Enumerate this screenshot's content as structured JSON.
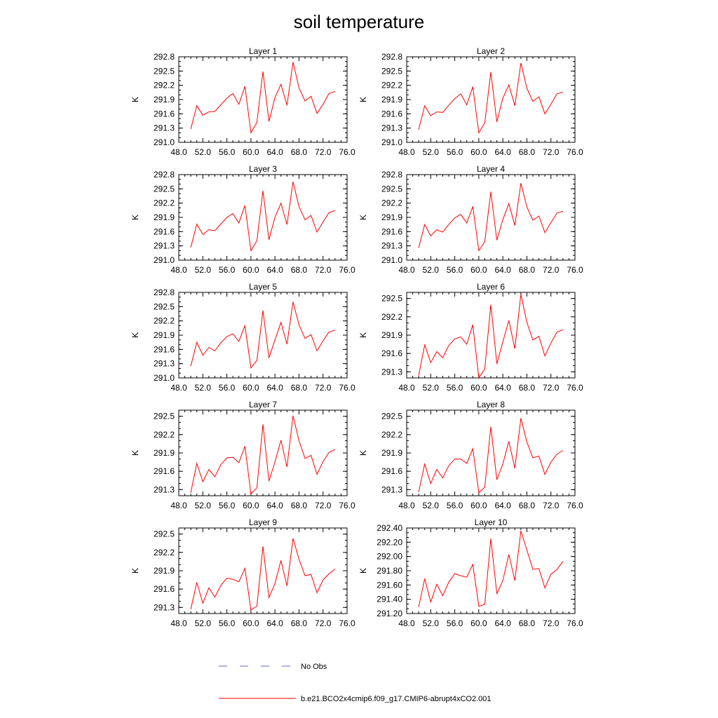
{
  "figure_title": "soil temperature",
  "legend": [
    {
      "label": "No Obs",
      "color": "#6666cc",
      "style": "dashed"
    },
    {
      "label": "b.e21.BCO2x4cmip6.f09_g17.CMIP6-abrupt4xCO2.001",
      "color": "#ff0000",
      "style": "solid"
    }
  ],
  "chart_data": [
    {
      "type": "line",
      "title": "Layer 1",
      "xlabel": "",
      "ylabel": "K",
      "xlim": [
        48,
        76
      ],
      "ylim": [
        291.0,
        292.8
      ],
      "xticks": [
        48,
        52,
        56,
        60,
        64,
        68,
        72,
        76
      ],
      "xtick_labels": [
        "48.0",
        "52.0",
        "56.0",
        "60.0",
        "64.0",
        "68.0",
        "72.0",
        "76.0"
      ],
      "yticks": [
        291.0,
        291.3,
        291.6,
        291.9,
        292.2,
        292.5,
        292.8
      ],
      "ytick_labels": [
        "291.0",
        "291.3",
        "291.6",
        "291.9",
        "292.2",
        "292.5",
        "292.8"
      ],
      "series": [
        {
          "name": "b.e21.BCO2x4cmip6.f09_g17.CMIP6-abrupt4xCO2.001",
          "x": [
            50,
            51,
            52,
            53,
            54,
            55,
            56,
            57,
            58,
            59,
            60,
            61,
            62,
            63,
            64,
            65,
            66,
            67,
            68,
            69,
            70,
            71,
            72,
            73,
            74
          ],
          "y": [
            291.28,
            291.77,
            291.57,
            291.64,
            291.65,
            291.79,
            291.93,
            292.03,
            291.8,
            292.18,
            291.2,
            291.42,
            292.49,
            291.44,
            291.94,
            292.22,
            291.78,
            292.69,
            292.15,
            291.87,
            291.97,
            291.61,
            291.8,
            292.03,
            292.07
          ]
        }
      ]
    },
    {
      "type": "line",
      "title": "Layer 2",
      "xlabel": "",
      "ylabel": "K",
      "xlim": [
        48,
        76
      ],
      "ylim": [
        291.0,
        292.8
      ],
      "xticks": [
        48,
        52,
        56,
        60,
        64,
        68,
        72,
        76
      ],
      "xtick_labels": [
        "48.0",
        "52.0",
        "56.0",
        "60.0",
        "64.0",
        "68.0",
        "72.0",
        "76.0"
      ],
      "yticks": [
        291.0,
        291.3,
        291.6,
        291.9,
        292.2,
        292.5,
        292.8
      ],
      "ytick_labels": [
        "291.0",
        "291.3",
        "291.6",
        "291.9",
        "292.2",
        "292.5",
        "292.8"
      ],
      "series": [
        {
          "name": "b.e21.BCO2x4cmip6.f09_g17.CMIP6-abrupt4xCO2.001",
          "x": [
            50,
            51,
            52,
            53,
            54,
            55,
            56,
            57,
            58,
            59,
            60,
            61,
            62,
            63,
            64,
            65,
            66,
            67,
            68,
            69,
            70,
            71,
            72,
            73,
            74
          ],
          "y": [
            291.27,
            291.77,
            291.56,
            291.64,
            291.63,
            291.78,
            291.92,
            292.02,
            291.79,
            292.17,
            291.2,
            291.41,
            292.48,
            291.43,
            291.93,
            292.21,
            291.77,
            292.67,
            292.14,
            291.86,
            291.96,
            291.6,
            291.8,
            292.02,
            292.06
          ]
        }
      ]
    },
    {
      "type": "line",
      "title": "Layer 3",
      "xlabel": "",
      "ylabel": "K",
      "xlim": [
        48,
        76
      ],
      "ylim": [
        291.0,
        292.8
      ],
      "xticks": [
        48,
        52,
        56,
        60,
        64,
        68,
        72,
        76
      ],
      "xtick_labels": [
        "48.0",
        "52.0",
        "56.0",
        "60.0",
        "64.0",
        "68.0",
        "72.0",
        "76.0"
      ],
      "yticks": [
        291.0,
        291.3,
        291.6,
        291.9,
        292.2,
        292.5,
        292.8
      ],
      "ytick_labels": [
        "291.0",
        "291.3",
        "291.6",
        "291.9",
        "292.2",
        "292.5",
        "292.8"
      ],
      "series": [
        {
          "name": "b.e21.BCO2x4cmip6.f09_g17.CMIP6-abrupt4xCO2.001",
          "x": [
            50,
            51,
            52,
            53,
            54,
            55,
            56,
            57,
            58,
            59,
            60,
            61,
            62,
            63,
            64,
            65,
            66,
            67,
            68,
            69,
            70,
            71,
            72,
            73,
            74
          ],
          "y": [
            291.27,
            291.76,
            291.54,
            291.64,
            291.62,
            291.76,
            291.9,
            291.98,
            291.78,
            292.15,
            291.2,
            291.41,
            292.46,
            291.43,
            291.9,
            292.2,
            291.75,
            292.65,
            292.13,
            291.85,
            291.94,
            291.59,
            291.8,
            292.0,
            292.04
          ]
        }
      ]
    },
    {
      "type": "line",
      "title": "Layer 4",
      "xlabel": "",
      "ylabel": "K",
      "xlim": [
        48,
        76
      ],
      "ylim": [
        291.0,
        292.8
      ],
      "xticks": [
        48,
        52,
        56,
        60,
        64,
        68,
        72,
        76
      ],
      "xtick_labels": [
        "48.0",
        "52.0",
        "56.0",
        "60.0",
        "64.0",
        "68.0",
        "72.0",
        "76.0"
      ],
      "yticks": [
        291.0,
        291.3,
        291.6,
        291.9,
        292.2,
        292.5,
        292.8
      ],
      "ytick_labels": [
        "291.0",
        "291.3",
        "291.6",
        "291.9",
        "292.2",
        "292.5",
        "292.8"
      ],
      "series": [
        {
          "name": "b.e21.BCO2x4cmip6.f09_g17.CMIP6-abrupt4xCO2.001",
          "x": [
            50,
            51,
            52,
            53,
            54,
            55,
            56,
            57,
            58,
            59,
            60,
            61,
            62,
            63,
            64,
            65,
            66,
            67,
            68,
            69,
            70,
            71,
            72,
            73,
            74
          ],
          "y": [
            291.26,
            291.75,
            291.51,
            291.64,
            291.59,
            291.75,
            291.89,
            291.96,
            291.78,
            292.13,
            291.2,
            291.39,
            292.44,
            291.42,
            291.85,
            292.19,
            291.73,
            292.62,
            292.12,
            291.84,
            291.93,
            291.58,
            291.79,
            291.99,
            292.03
          ]
        }
      ]
    },
    {
      "type": "line",
      "title": "Layer 5",
      "xlabel": "",
      "ylabel": "K",
      "xlim": [
        48,
        76
      ],
      "ylim": [
        291.0,
        292.8
      ],
      "xticks": [
        48,
        52,
        56,
        60,
        64,
        68,
        72,
        76
      ],
      "xtick_labels": [
        "48.0",
        "52.0",
        "56.0",
        "60.0",
        "64.0",
        "68.0",
        "72.0",
        "76.0"
      ],
      "yticks": [
        291.0,
        291.3,
        291.6,
        291.9,
        292.2,
        292.5,
        292.8
      ],
      "ytick_labels": [
        "291.0",
        "291.3",
        "291.6",
        "291.9",
        "292.2",
        "292.5",
        "292.8"
      ],
      "series": [
        {
          "name": "b.e21.BCO2x4cmip6.f09_g17.CMIP6-abrupt4xCO2.001",
          "x": [
            50,
            51,
            52,
            53,
            54,
            55,
            56,
            57,
            58,
            59,
            60,
            61,
            62,
            63,
            64,
            65,
            66,
            67,
            68,
            69,
            70,
            71,
            72,
            73,
            74
          ],
          "y": [
            291.25,
            291.75,
            291.48,
            291.64,
            291.57,
            291.74,
            291.87,
            291.93,
            291.77,
            292.1,
            291.21,
            291.37,
            292.42,
            291.42,
            291.8,
            292.17,
            291.71,
            292.6,
            292.12,
            291.83,
            291.91,
            291.57,
            291.78,
            291.97,
            292.0
          ]
        }
      ]
    },
    {
      "type": "line",
      "title": "Layer 6",
      "xlabel": "",
      "ylabel": "K",
      "xlim": [
        48,
        76
      ],
      "ylim": [
        291.2,
        292.6
      ],
      "xticks": [
        48,
        52,
        56,
        60,
        64,
        68,
        72,
        76
      ],
      "xtick_labels": [
        "48.0",
        "52.0",
        "56.0",
        "60.0",
        "64.0",
        "68.0",
        "72.0",
        "76.0"
      ],
      "yticks": [
        291.3,
        291.6,
        291.9,
        292.2,
        292.5
      ],
      "ytick_labels": [
        "291.3",
        "291.6",
        "291.9",
        "292.2",
        "292.5"
      ],
      "series": [
        {
          "name": "b.e21.BCO2x4cmip6.f09_g17.CMIP6-abrupt4xCO2.001",
          "x": [
            50,
            51,
            52,
            53,
            54,
            55,
            56,
            57,
            58,
            59,
            60,
            61,
            62,
            63,
            64,
            65,
            66,
            67,
            68,
            69,
            70,
            71,
            72,
            73,
            74
          ],
          "y": [
            291.24,
            291.74,
            291.45,
            291.63,
            291.53,
            291.73,
            291.84,
            291.87,
            291.75,
            292.07,
            291.2,
            291.35,
            292.4,
            291.43,
            291.79,
            292.14,
            291.68,
            292.57,
            292.11,
            291.82,
            291.88,
            291.56,
            291.77,
            291.95,
            291.99
          ]
        }
      ]
    },
    {
      "type": "line",
      "title": "Layer 7",
      "xlabel": "",
      "ylabel": "K",
      "xlim": [
        48,
        76
      ],
      "ylim": [
        291.2,
        292.6
      ],
      "xticks": [
        48,
        52,
        56,
        60,
        64,
        68,
        72,
        76
      ],
      "xtick_labels": [
        "48.0",
        "52.0",
        "56.0",
        "60.0",
        "64.0",
        "68.0",
        "72.0",
        "76.0"
      ],
      "yticks": [
        291.3,
        291.6,
        291.9,
        292.2,
        292.5
      ],
      "ytick_labels": [
        "291.3",
        "291.6",
        "291.9",
        "292.2",
        "292.5"
      ],
      "series": [
        {
          "name": "b.e21.BCO2x4cmip6.f09_g17.CMIP6-abrupt4xCO2.001",
          "x": [
            50,
            51,
            52,
            53,
            54,
            55,
            56,
            57,
            58,
            59,
            60,
            61,
            62,
            63,
            64,
            65,
            66,
            67,
            68,
            69,
            70,
            71,
            72,
            73,
            74
          ],
          "y": [
            291.25,
            291.73,
            291.43,
            291.63,
            291.51,
            291.71,
            291.82,
            291.83,
            291.74,
            292.01,
            291.23,
            291.33,
            292.37,
            291.44,
            291.75,
            292.11,
            291.67,
            292.51,
            292.1,
            291.81,
            291.86,
            291.55,
            291.76,
            291.91,
            291.96
          ]
        }
      ]
    },
    {
      "type": "line",
      "title": "Layer 8",
      "xlabel": "",
      "ylabel": "K",
      "xlim": [
        48,
        76
      ],
      "ylim": [
        291.2,
        292.6
      ],
      "xticks": [
        48,
        52,
        56,
        60,
        64,
        68,
        72,
        76
      ],
      "xtick_labels": [
        "48.0",
        "52.0",
        "56.0",
        "60.0",
        "64.0",
        "68.0",
        "72.0",
        "76.0"
      ],
      "yticks": [
        291.3,
        291.6,
        291.9,
        292.2,
        292.5
      ],
      "ytick_labels": [
        "291.3",
        "291.6",
        "291.9",
        "292.2",
        "292.5"
      ],
      "series": [
        {
          "name": "b.e21.BCO2x4cmip6.f09_g17.CMIP6-abrupt4xCO2.001",
          "x": [
            50,
            51,
            52,
            53,
            54,
            55,
            56,
            57,
            58,
            59,
            60,
            61,
            62,
            63,
            64,
            65,
            66,
            67,
            68,
            69,
            70,
            71,
            72,
            73,
            74
          ],
          "y": [
            291.26,
            291.72,
            291.4,
            291.63,
            291.49,
            291.69,
            291.8,
            291.8,
            291.73,
            291.97,
            291.25,
            291.34,
            292.33,
            291.46,
            291.72,
            292.09,
            291.65,
            292.47,
            292.08,
            291.82,
            291.85,
            291.55,
            291.75,
            291.88,
            291.94
          ]
        }
      ]
    },
    {
      "type": "line",
      "title": "Layer 9",
      "xlabel": "",
      "ylabel": "K",
      "xlim": [
        48,
        76
      ],
      "ylim": [
        291.2,
        292.6
      ],
      "xticks": [
        48,
        52,
        56,
        60,
        64,
        68,
        72,
        76
      ],
      "xtick_labels": [
        "48.0",
        "52.0",
        "56.0",
        "60.0",
        "64.0",
        "68.0",
        "72.0",
        "76.0"
      ],
      "yticks": [
        291.3,
        291.6,
        291.9,
        292.2,
        292.5
      ],
      "ytick_labels": [
        "291.3",
        "291.6",
        "291.9",
        "292.2",
        "292.5"
      ],
      "series": [
        {
          "name": "b.e21.BCO2x4cmip6.f09_g17.CMIP6-abrupt4xCO2.001",
          "x": [
            50,
            51,
            52,
            53,
            54,
            55,
            56,
            57,
            58,
            59,
            60,
            61,
            62,
            63,
            64,
            65,
            66,
            67,
            68,
            69,
            70,
            71,
            72,
            73,
            74
          ],
          "y": [
            291.27,
            291.71,
            291.37,
            291.62,
            291.47,
            291.66,
            291.78,
            291.76,
            291.72,
            291.94,
            291.26,
            291.32,
            292.3,
            291.46,
            291.69,
            292.07,
            291.65,
            292.43,
            292.09,
            291.82,
            291.84,
            291.54,
            291.75,
            291.85,
            291.93
          ]
        }
      ]
    },
    {
      "type": "line",
      "title": "Layer 10",
      "xlabel": "",
      "ylabel": "K",
      "xlim": [
        48,
        76
      ],
      "ylim": [
        291.2,
        292.4
      ],
      "xticks": [
        48,
        52,
        56,
        60,
        64,
        68,
        72,
        76
      ],
      "xtick_labels": [
        "48.0",
        "52.0",
        "56.0",
        "60.0",
        "64.0",
        "68.0",
        "72.0",
        "76.0"
      ],
      "yticks": [
        291.2,
        291.4,
        291.6,
        291.8,
        292.0,
        292.2,
        292.4
      ],
      "ytick_labels": [
        "291.20",
        "291.40",
        "291.60",
        "291.80",
        "292.00",
        "292.20",
        "292.40"
      ],
      "series": [
        {
          "name": "b.e21.BCO2x4cmip6.f09_g17.CMIP6-abrupt4xCO2.001",
          "x": [
            50,
            51,
            52,
            53,
            54,
            55,
            56,
            57,
            58,
            59,
            60,
            61,
            62,
            63,
            64,
            65,
            66,
            67,
            68,
            69,
            70,
            71,
            72,
            73,
            74
          ],
          "y": [
            291.29,
            291.69,
            291.36,
            291.61,
            291.45,
            291.64,
            291.76,
            291.73,
            291.71,
            291.89,
            291.3,
            291.33,
            292.25,
            291.48,
            291.66,
            292.03,
            291.66,
            292.36,
            292.09,
            291.82,
            291.83,
            291.56,
            291.75,
            291.82,
            291.93
          ]
        }
      ]
    }
  ]
}
